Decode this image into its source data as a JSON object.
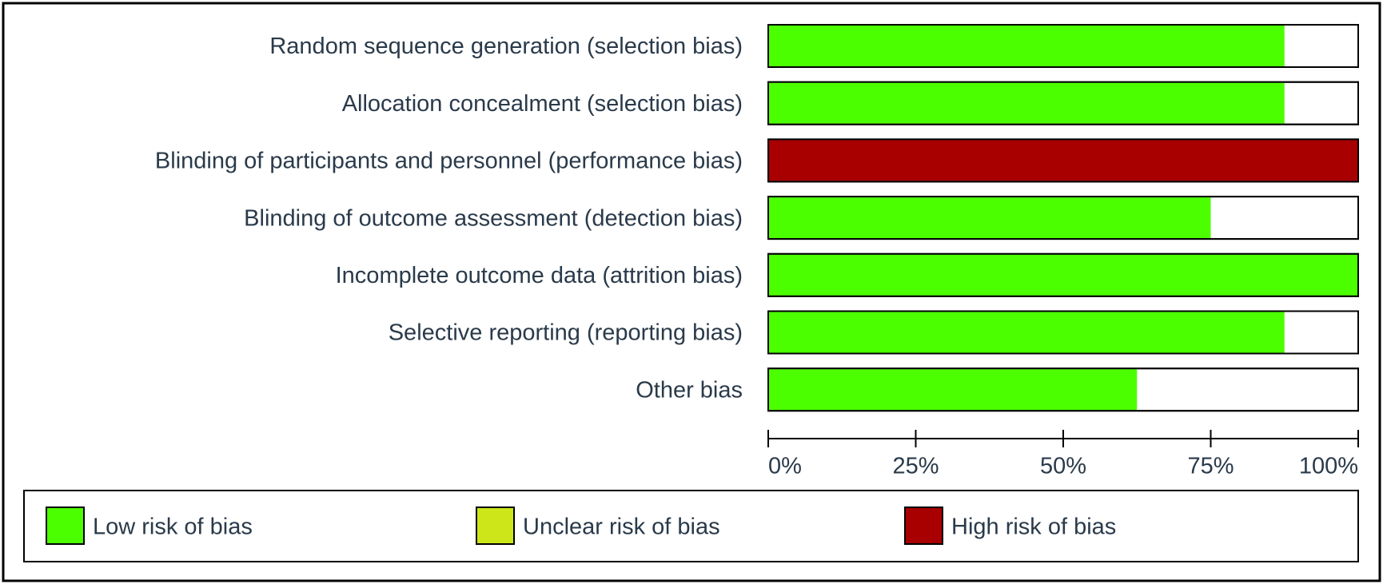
{
  "chart_data": {
    "type": "bar",
    "orientation": "horizontal",
    "stacked": true,
    "categories": [
      "Random sequence generation (selection bias)",
      "Allocation concealment (selection bias)",
      "Blinding of participants and personnel (performance bias)",
      "Blinding of outcome assessment (detection bias)",
      "Incomplete outcome data (attrition bias)",
      "Selective reporting (reporting bias)",
      "Other bias"
    ],
    "series": [
      {
        "name": "Low risk of bias",
        "color": "#4cff00",
        "values": [
          87.5,
          87.5,
          0,
          75,
          100,
          87.5,
          62.5
        ]
      },
      {
        "name": "Unclear risk of bias",
        "color": "#cce619",
        "values": [
          0,
          0,
          0,
          0,
          0,
          0,
          0
        ]
      },
      {
        "name": "High risk of bias",
        "color": "#a80000",
        "values": [
          0,
          0,
          100,
          0,
          0,
          0,
          0
        ]
      }
    ],
    "xlim": [
      0,
      100
    ],
    "xticks": [
      {
        "value": 0,
        "label": "0%"
      },
      {
        "value": 25,
        "label": "25%"
      },
      {
        "value": 50,
        "label": "50%"
      },
      {
        "value": 75,
        "label": "75%"
      },
      {
        "value": 100,
        "label": "100%"
      }
    ],
    "legend": "bottom"
  }
}
